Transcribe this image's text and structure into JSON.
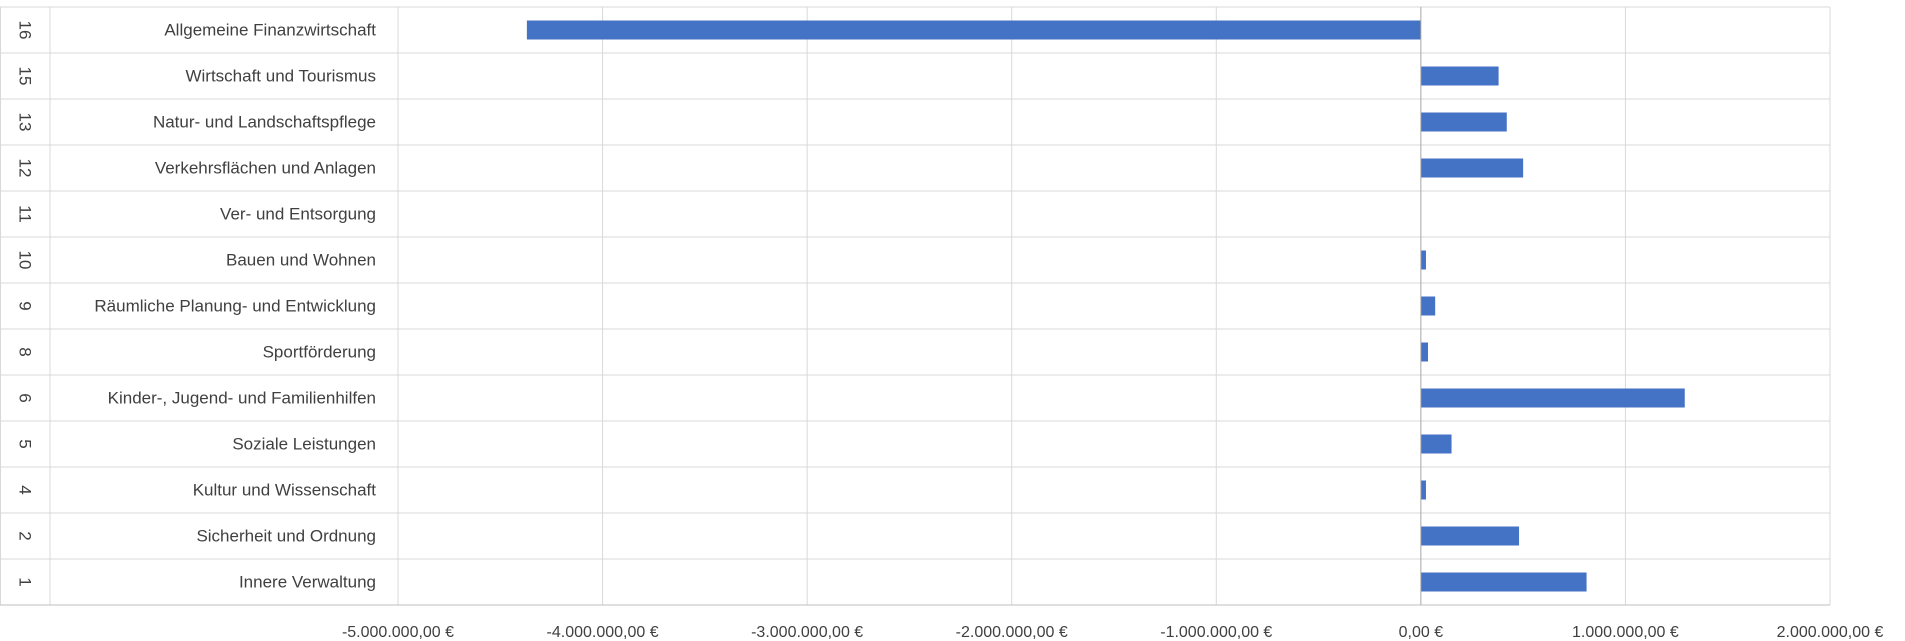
{
  "chart_data": {
    "type": "bar",
    "orientation": "horizontal",
    "categories": [
      {
        "number": "16",
        "label": "Allgemeine Finanzwirtschaft"
      },
      {
        "number": "15",
        "label": "Wirtschaft und Tourismus"
      },
      {
        "number": "13",
        "label": "Natur- und Landschaftspflege"
      },
      {
        "number": "12",
        "label": "Verkehrsflächen und Anlagen"
      },
      {
        "number": "11",
        "label": "Ver- und Entsorgung"
      },
      {
        "number": "10",
        "label": "Bauen und Wohnen"
      },
      {
        "number": "9",
        "label": "Räumliche Planung- und Entwicklung"
      },
      {
        "number": "8",
        "label": "Sportförderung"
      },
      {
        "number": "6",
        "label": "Kinder-, Jugend- und Familienhilfen"
      },
      {
        "number": "5",
        "label": "Soziale Leistungen"
      },
      {
        "number": "4",
        "label": "Kultur und Wissenschaft"
      },
      {
        "number": "2",
        "label": "Sicherheit und Ordnung"
      },
      {
        "number": "1",
        "label": "Innere Verwaltung"
      }
    ],
    "values": [
      -4370000,
      380000,
      420000,
      500000,
      0,
      25000,
      70000,
      35000,
      1290000,
      150000,
      25000,
      480000,
      810000
    ],
    "xlim": [
      -5000000,
      2000000
    ],
    "xticks": [
      {
        "value": -5000000,
        "label": "-5.000.000,00 €"
      },
      {
        "value": -4000000,
        "label": "-4.000.000,00 €"
      },
      {
        "value": -3000000,
        "label": "-3.000.000,00 €"
      },
      {
        "value": -2000000,
        "label": "-2.000.000,00 €"
      },
      {
        "value": -1000000,
        "label": "-1.000.000,00 €"
      },
      {
        "value": 0,
        "label": "0,00 €"
      },
      {
        "value": 1000000,
        "label": "1.000.000,00 €"
      },
      {
        "value": 2000000,
        "label": "2.000.000,00 €"
      }
    ],
    "grid": true,
    "legend": "none",
    "bar_color": "#4472c4",
    "grid_color": "#d9d9d9"
  }
}
